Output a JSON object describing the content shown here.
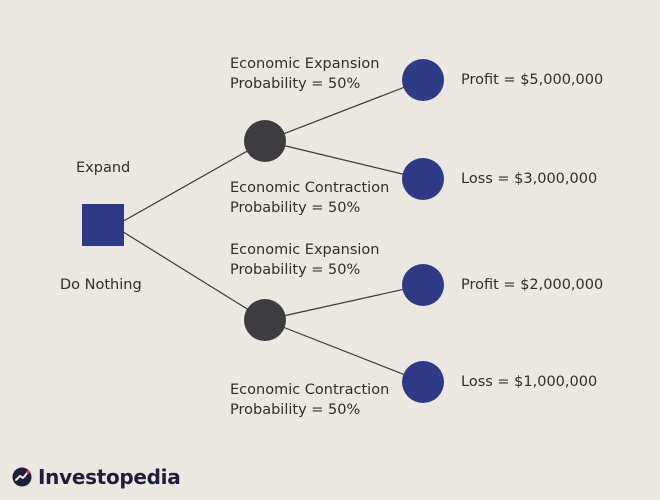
{
  "decision": {
    "option_top": "Expand",
    "option_bottom": "Do Nothing"
  },
  "branches": {
    "expand_expansion": {
      "line1": "Economic Expansion",
      "line2": "Probability = 50%"
    },
    "expand_contraction": {
      "line1": "Economic Contraction",
      "line2": "Probability = 50%"
    },
    "nothing_expansion": {
      "line1": "Economic Expansion",
      "line2": "Probability = 50%"
    },
    "nothing_contraction": {
      "line1": "Economic Contraction",
      "line2": "Probability = 50%"
    }
  },
  "outcomes": {
    "o1": "Profit = $5,000,000",
    "o2": "Loss = $3,000,000",
    "o3": "Profit = $2,000,000",
    "o4": "Loss = $1,000,000"
  },
  "brand": {
    "name": "Investopedia"
  },
  "colors": {
    "background": "#ebe7e1",
    "decision_node": "#2f3a86",
    "chance_node": "#3d3d40",
    "outcome_node": "#2f3a86",
    "line": "#3a3a3a",
    "text": "#2f2f2f"
  },
  "icons": {
    "brand_mark": "investopedia-logo-icon"
  }
}
